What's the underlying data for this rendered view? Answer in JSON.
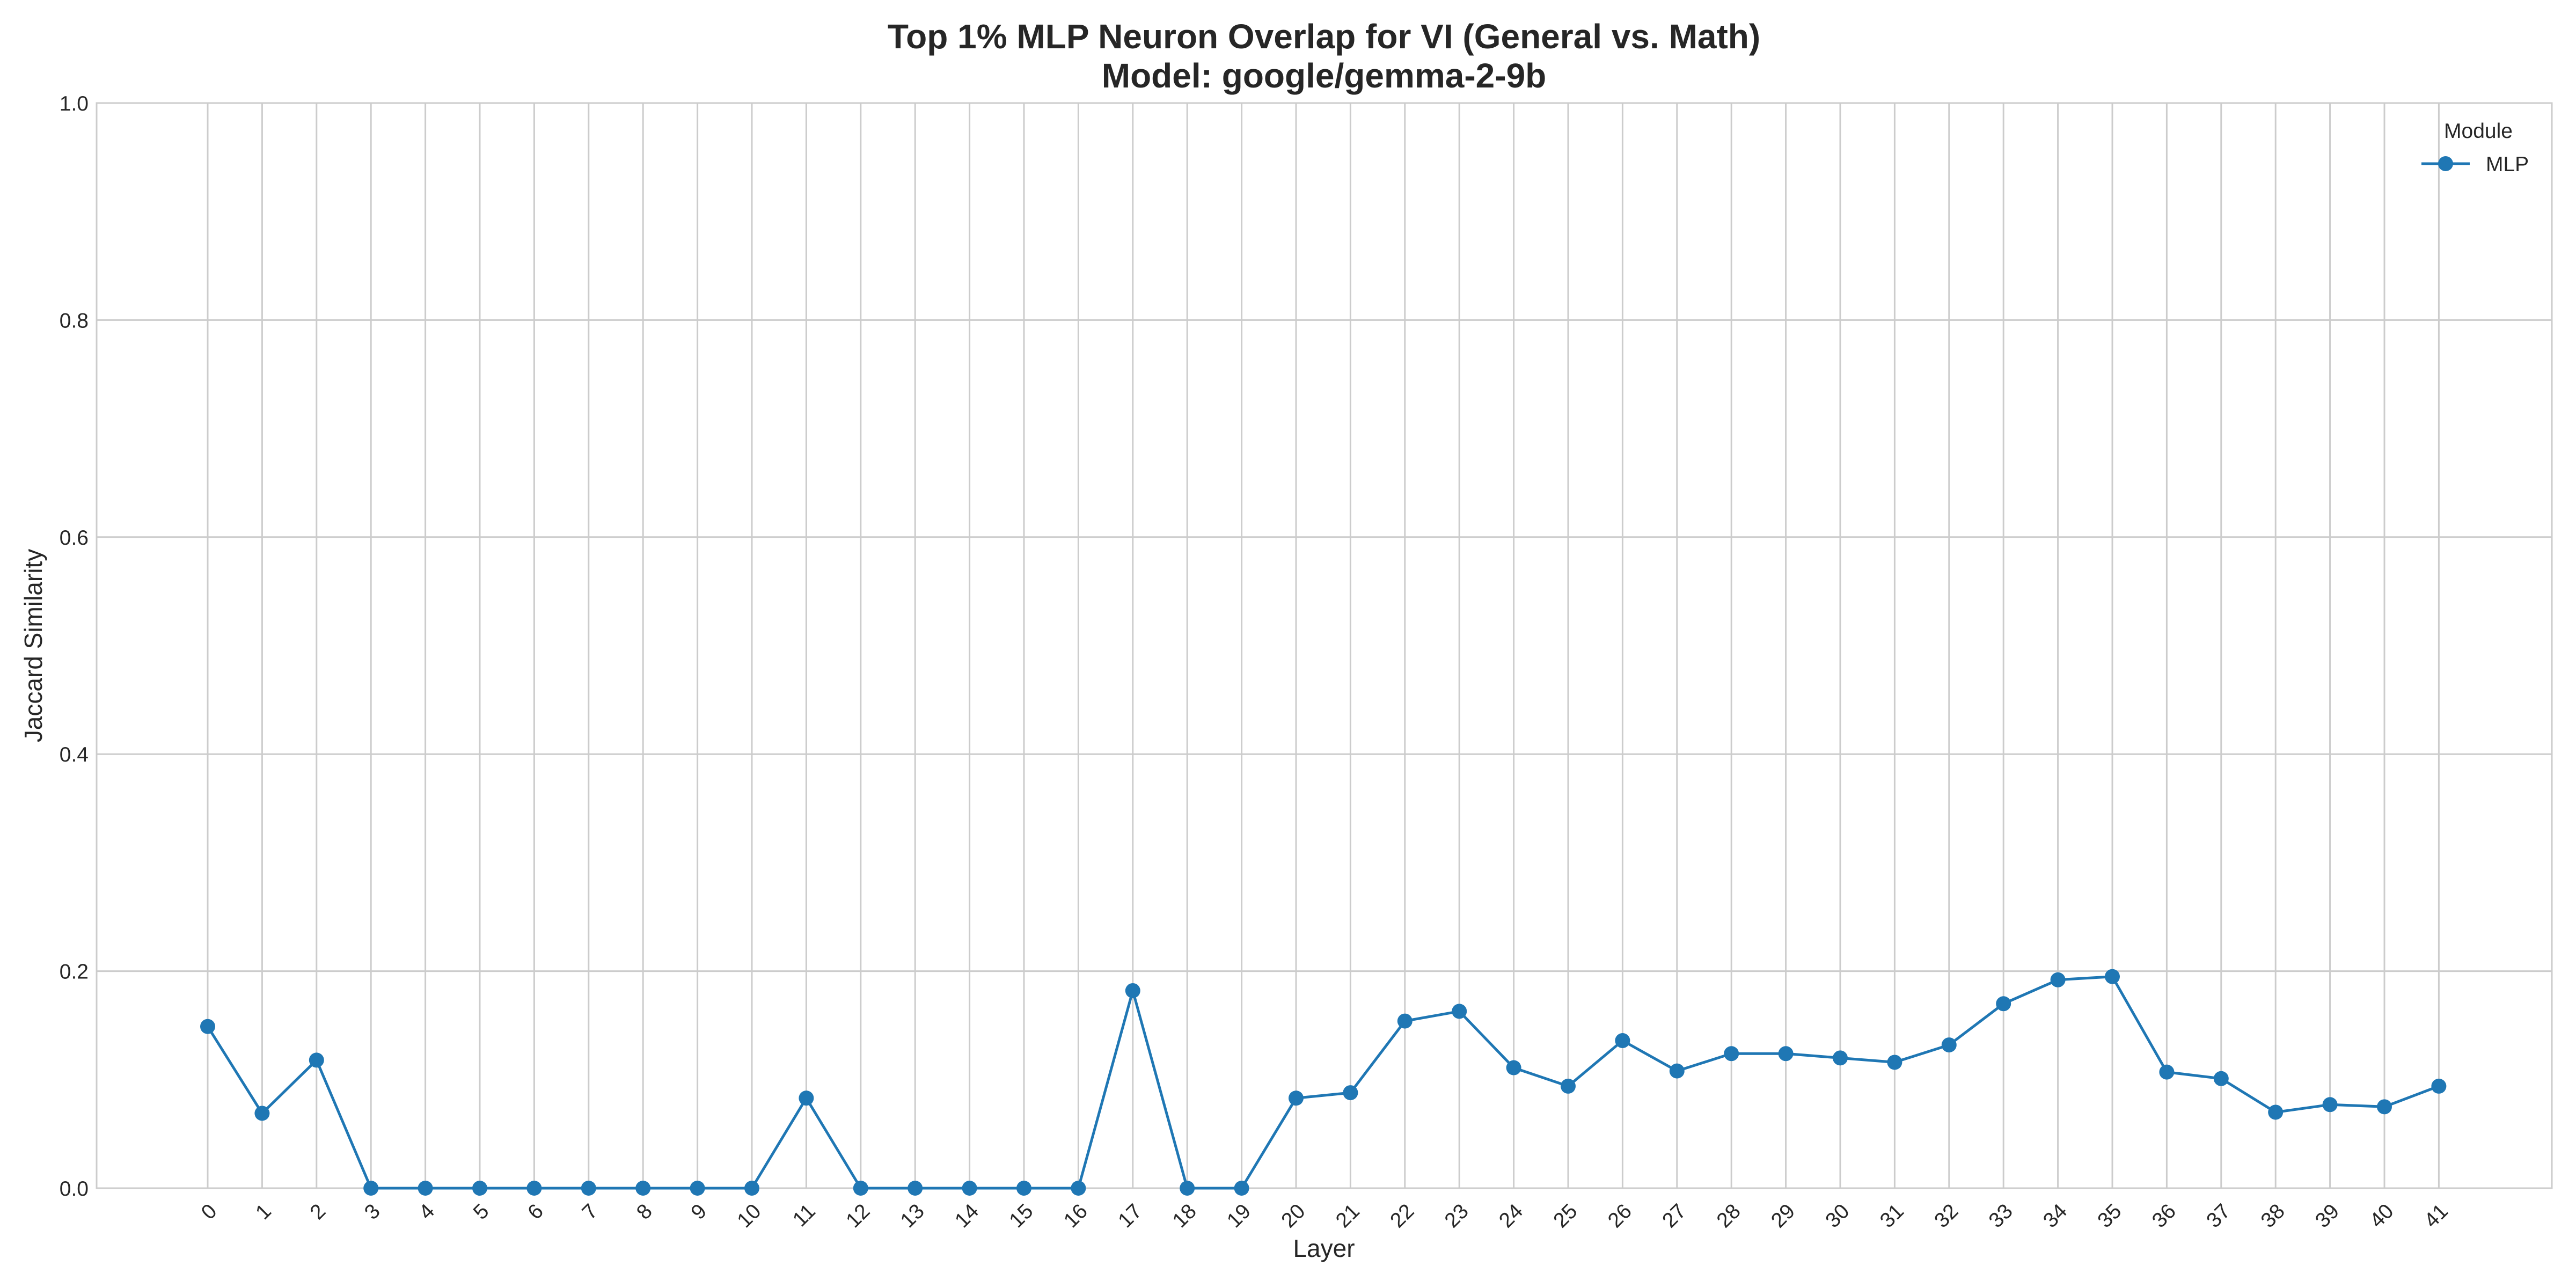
{
  "chart_data": {
    "type": "line",
    "title_line1": "Top 1% MLP Neuron Overlap for VI (General vs. Math)",
    "title_line2": "Model: google/gemma-2-9b",
    "xlabel": "Layer",
    "ylabel": "Jaccard Similarity",
    "ylim": [
      0,
      1
    ],
    "yticks": [
      "0.0",
      "0.2",
      "0.4",
      "0.6",
      "0.8",
      "1.0"
    ],
    "x": [
      "0",
      "1",
      "2",
      "3",
      "4",
      "5",
      "6",
      "7",
      "8",
      "9",
      "10",
      "11",
      "12",
      "13",
      "14",
      "15",
      "16",
      "17",
      "18",
      "19",
      "20",
      "21",
      "22",
      "23",
      "24",
      "25",
      "26",
      "27",
      "28",
      "29",
      "30",
      "31",
      "32",
      "33",
      "34",
      "35",
      "36",
      "37",
      "38",
      "39",
      "40",
      "41"
    ],
    "series": [
      {
        "name": "MLP",
        "color": "#1f77b4",
        "values": [
          0.149,
          0.069,
          0.118,
          0.0,
          0.0,
          0.0,
          0.0,
          0.0,
          0.0,
          0.0,
          0.0,
          0.083,
          0.0,
          0.0,
          0.0,
          0.0,
          0.0,
          0.182,
          0.0,
          0.0,
          0.083,
          0.088,
          0.154,
          0.163,
          0.111,
          0.094,
          0.136,
          0.108,
          0.124,
          0.124,
          0.12,
          0.116,
          0.132,
          0.17,
          0.192,
          0.195,
          0.107,
          0.101,
          0.07,
          0.077,
          0.075,
          0.094
        ]
      }
    ],
    "legend": {
      "title": "Module",
      "position": "top-right"
    },
    "grid": true
  }
}
